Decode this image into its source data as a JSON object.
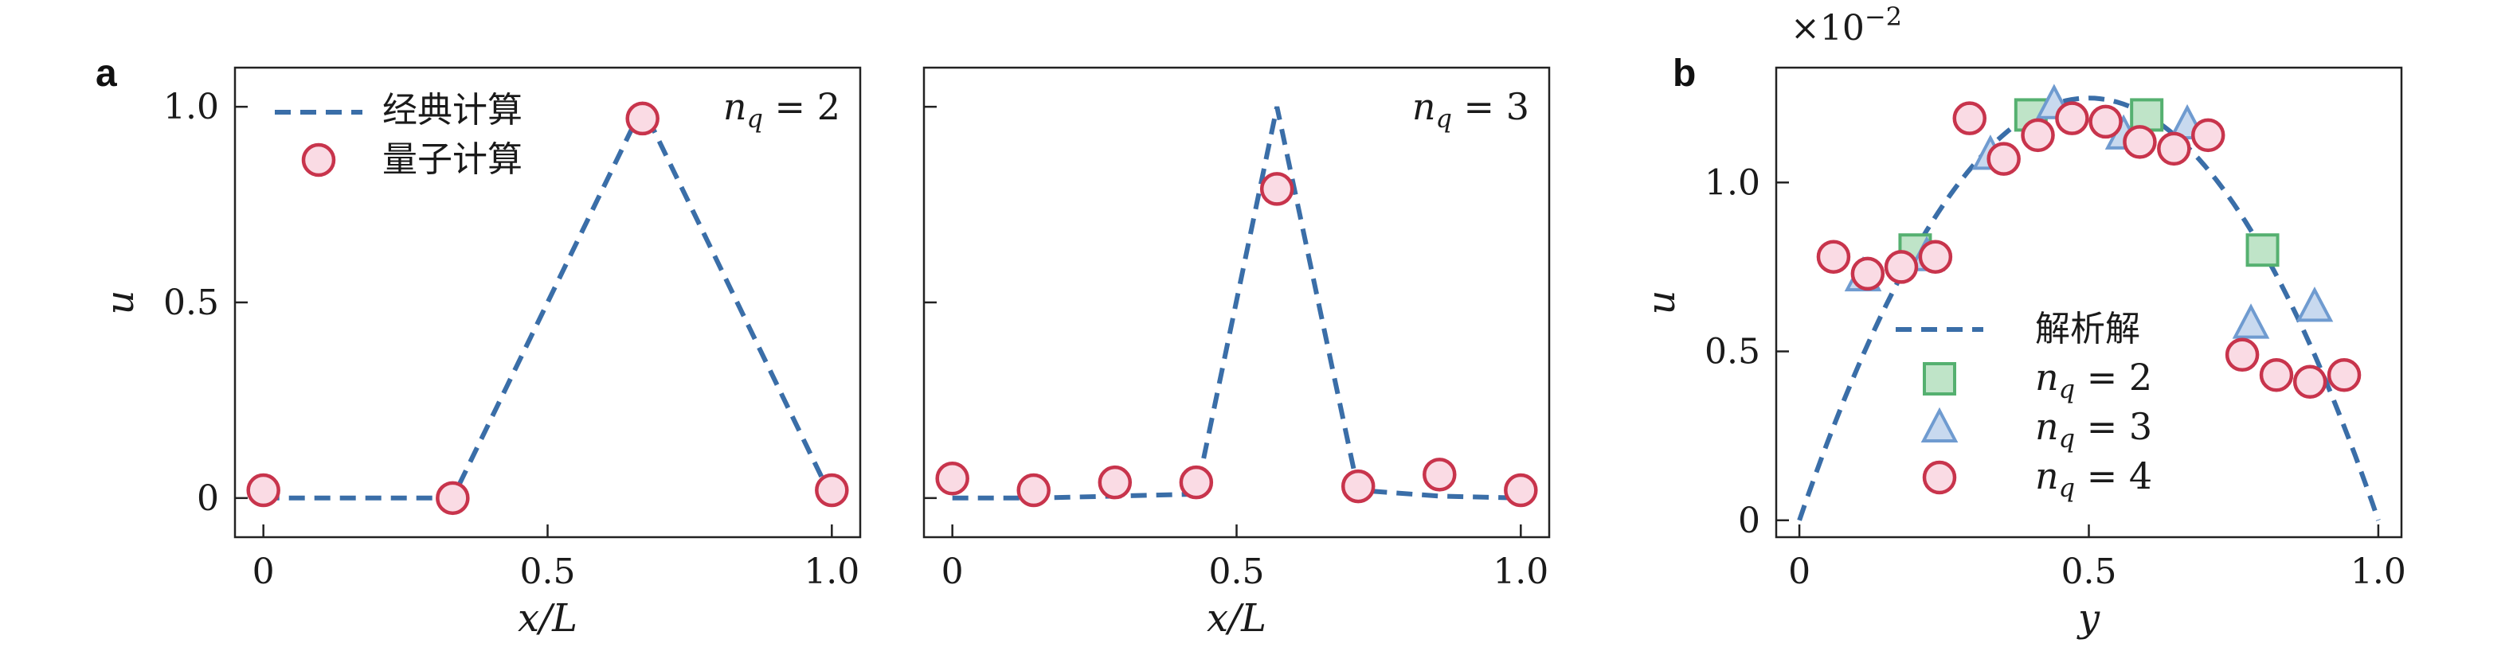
{
  "chart_data": [
    {
      "panel_label": "a",
      "type": "line+scatter",
      "xlabel": "x/L",
      "ylabel": "u",
      "xlim": [
        -0.05,
        1.05
      ],
      "ylim": [
        -0.1,
        1.1
      ],
      "xticks": [
        "0",
        "0.5",
        "1.0"
      ],
      "yticks": [
        "0",
        "0.5",
        "1.0"
      ],
      "annotation": "n_q = 2",
      "annotation_var": "n",
      "annotation_sub": "q",
      "annotation_eq": "= 2",
      "legend": [
        {
          "label": "经典计算",
          "style": "dashed-line"
        },
        {
          "label": "量子计算",
          "style": "circle-marker"
        }
      ],
      "series": [
        {
          "name": "经典计算",
          "kind": "dashed",
          "x": [
            0,
            0.333,
            0.667,
            1.0
          ],
          "y": [
            0,
            0,
            1.0,
            0
          ]
        },
        {
          "name": "量子计算",
          "kind": "circle",
          "x": [
            0,
            0.333,
            0.667,
            1.0
          ],
          "y": [
            0.02,
            0.0,
            0.97,
            0.02
          ]
        }
      ]
    },
    {
      "type": "line+scatter",
      "xlabel": "x/L",
      "ylabel": "",
      "xlim": [
        -0.05,
        1.05
      ],
      "ylim": [
        -0.1,
        1.1
      ],
      "xticks": [
        "0",
        "0.5",
        "1.0"
      ],
      "annotation": "n_q = 3",
      "annotation_var": "n",
      "annotation_sub": "q",
      "annotation_eq": "= 3",
      "series": [
        {
          "name": "经典计算",
          "kind": "dashed",
          "x": [
            0,
            0.143,
            0.286,
            0.429,
            0.571,
            0.714,
            0.857,
            1.0
          ],
          "y": [
            0,
            0,
            0.005,
            0.01,
            1.0,
            0.02,
            0.005,
            0
          ]
        },
        {
          "name": "量子计算",
          "kind": "circle",
          "x": [
            0,
            0.143,
            0.286,
            0.429,
            0.571,
            0.714,
            0.857,
            1.0
          ],
          "y": [
            0.05,
            0.02,
            0.04,
            0.04,
            0.79,
            0.03,
            0.06,
            0.02
          ]
        }
      ]
    },
    {
      "panel_label": "b",
      "type": "line+scatter",
      "xlabel": "y",
      "ylabel": "u",
      "scale_label": "×10",
      "scale_exp": "−2",
      "xlim": [
        -0.04,
        1.04
      ],
      "ylim": [
        -0.05,
        1.34
      ],
      "xticks": [
        "0",
        "0.5",
        "1.0"
      ],
      "yticks": [
        "0",
        "0.5",
        "1.0"
      ],
      "legend": [
        {
          "label": "解析解",
          "style": "dashed-line"
        },
        {
          "label": "n_q = 2",
          "var": "n",
          "sub": "q",
          "eq": "= 2",
          "style": "square-marker"
        },
        {
          "label": "n_q = 3",
          "var": "n",
          "sub": "q",
          "eq": "= 3",
          "style": "triangle-marker"
        },
        {
          "label": "n_q = 4",
          "var": "n",
          "sub": "q",
          "eq": "= 4",
          "style": "circle-marker"
        }
      ],
      "series": [
        {
          "name": "解析解",
          "kind": "parabola",
          "peak": 1.25
        },
        {
          "name": "n_q = 2",
          "kind": "square",
          "x": [
            0.2,
            0.4,
            0.6,
            0.8
          ],
          "y": [
            0.8,
            1.2,
            1.2,
            0.8
          ]
        },
        {
          "name": "n_q = 3",
          "kind": "triangle",
          "x": [
            0.11,
            0.22,
            0.33,
            0.44,
            0.56,
            0.67,
            0.78,
            0.89
          ],
          "y": [
            0.72,
            0.78,
            1.08,
            1.23,
            1.14,
            1.17,
            0.58,
            0.63
          ]
        },
        {
          "name": "n_q = 4",
          "kind": "circle",
          "x": [
            0.059,
            0.118,
            0.176,
            0.235,
            0.294,
            0.353,
            0.412,
            0.471,
            0.529,
            0.588,
            0.647,
            0.706,
            0.765,
            0.824,
            0.882,
            0.941
          ],
          "y": [
            0.78,
            0.73,
            0.75,
            0.78,
            1.19,
            1.07,
            1.14,
            1.19,
            1.18,
            1.12,
            1.1,
            1.14,
            0.49,
            0.43,
            0.41,
            0.43
          ]
        }
      ]
    }
  ],
  "colors": {
    "line": "#3a6ea8",
    "circle_fill": "#fadbe4",
    "circle_edge": "#c8344c",
    "square_fill": "#bfe4c8",
    "square_edge": "#55b070",
    "triangle_fill": "#c8d9ef",
    "triangle_edge": "#6f9bd0"
  }
}
